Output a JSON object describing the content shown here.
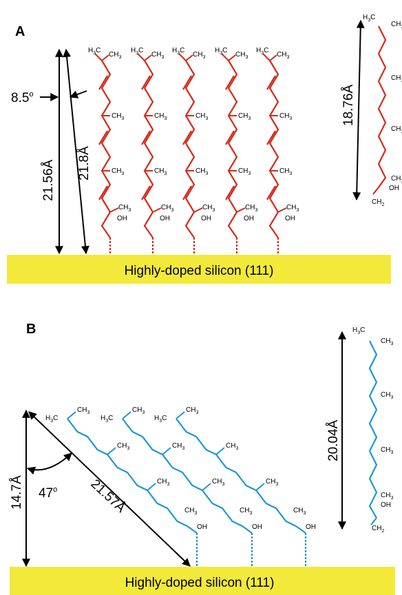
{
  "panel_a": {
    "label": "A",
    "substrate": "Highly-doped silicon (111)",
    "tilt_angle": "8.5",
    "tilt_angle_sup": "o",
    "vertical_length": "21.56Å",
    "molecule_length": "21.8Å",
    "single_molecule_length": "18.76Å",
    "chain_color": "#d42a1a",
    "substrate_color": "#f2e93b",
    "labels": {
      "ch3": "CH",
      "ch3_sub": "3",
      "h3c_h": "H",
      "h3c_sub": "3",
      "h3c_c": "C",
      "oh": "OH",
      "ch2": "CH",
      "ch2_sub": "2"
    }
  },
  "panel_b": {
    "label": "B",
    "substrate": "Highly-doped silicon (111)",
    "tilt_angle": "47",
    "tilt_angle_sup": "o",
    "vertical_length": "14.7Å",
    "molecule_length": "21.57Å",
    "single_molecule_length": "20.04Å",
    "chain_color": "#1e96d2",
    "substrate_color": "#f2e93b"
  }
}
